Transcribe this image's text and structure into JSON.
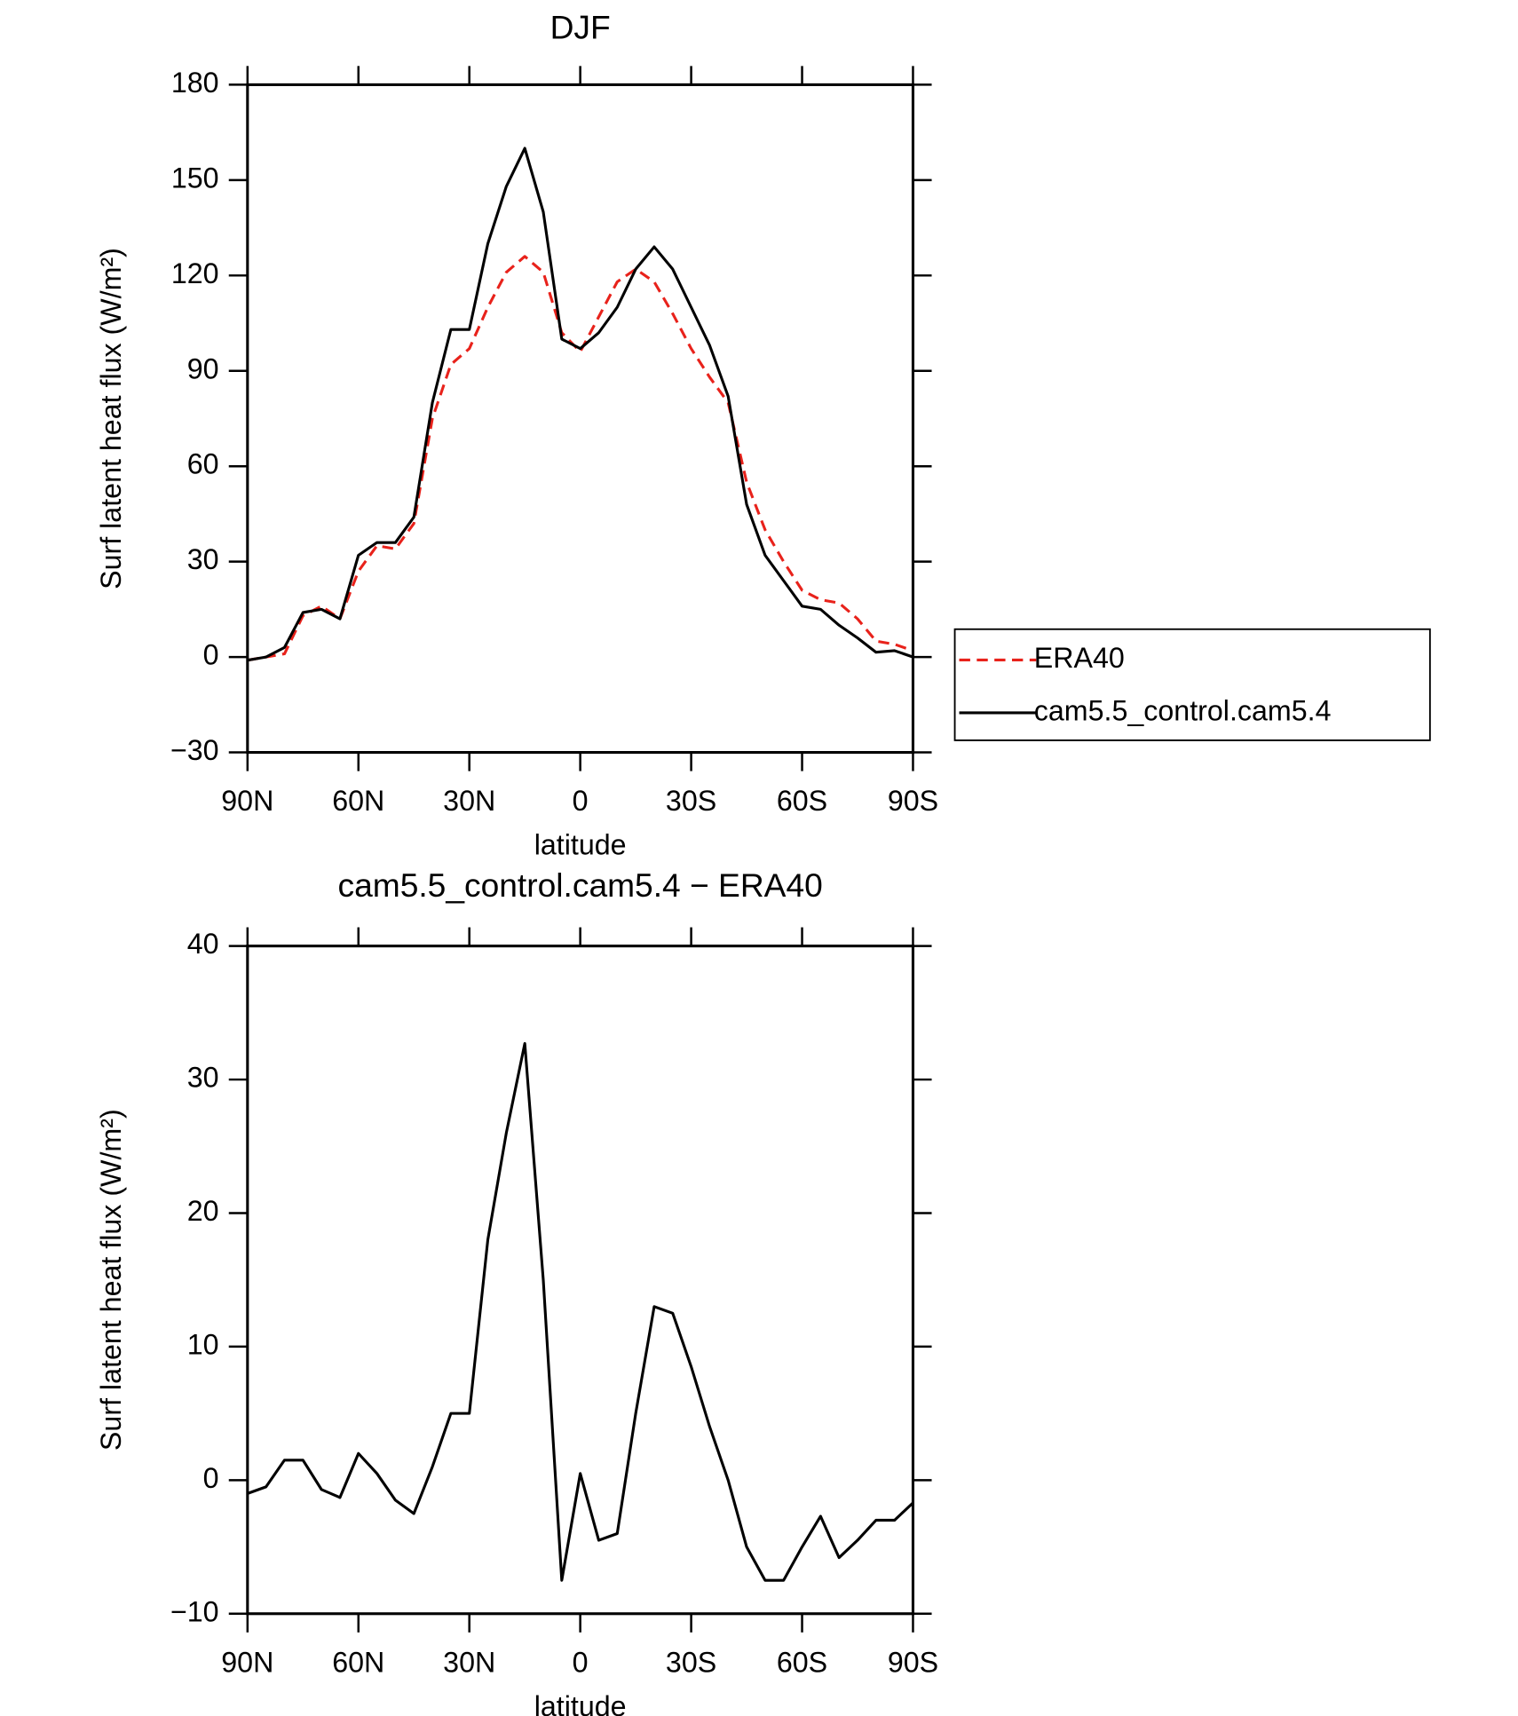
{
  "chart_data": [
    {
      "type": "line",
      "title": "DJF",
      "xlabel": "latitude",
      "ylabel": "Surf latent heat flux (W/m²)",
      "x": [
        90,
        85,
        80,
        75,
        70,
        65,
        60,
        55,
        50,
        45,
        40,
        35,
        30,
        25,
        20,
        15,
        10,
        5,
        0,
        -5,
        -10,
        -15,
        -20,
        -25,
        -30,
        -35,
        -40,
        -45,
        -50,
        -55,
        -60,
        -65,
        -70,
        -75,
        -80,
        -85,
        -90
      ],
      "series": [
        {
          "name": "ERA40",
          "color": "#e8221b",
          "dash": true,
          "values": [
            -1,
            0,
            1,
            13,
            16,
            12,
            27,
            35,
            34,
            42,
            75,
            92,
            97,
            110,
            121,
            126,
            121,
            102,
            96,
            107,
            118,
            122,
            118,
            108,
            97,
            88,
            80,
            55,
            40,
            30,
            21,
            18,
            17,
            12,
            5,
            4,
            2
          ]
        },
        {
          "name": "cam5.5_control.cam5.4",
          "color": "#000000",
          "dash": false,
          "values": [
            -1,
            0,
            3,
            14,
            15,
            12,
            32,
            36,
            36,
            44,
            80,
            103,
            103,
            130,
            148,
            160,
            140,
            100,
            97,
            102,
            110,
            122,
            129,
            122,
            110,
            98,
            82,
            48,
            32,
            24,
            16,
            15,
            10,
            6,
            1.5,
            2,
            0
          ]
        }
      ],
      "xlim": [
        90,
        -90
      ],
      "xticks": [
        {
          "value": 90,
          "label": "90N"
        },
        {
          "value": 60,
          "label": "60N"
        },
        {
          "value": 30,
          "label": "30N"
        },
        0,
        {
          "value": -30,
          "label": "30S"
        },
        {
          "value": -60,
          "label": "60S"
        },
        {
          "value": -90,
          "label": "90S"
        }
      ],
      "ylim": [
        -30,
        180
      ],
      "yticks": [
        {
          "value": -30,
          "label": "−30"
        },
        0,
        30,
        60,
        90,
        120,
        150,
        180
      ],
      "legend": "right"
    },
    {
      "type": "line",
      "title": "cam5.5_control.cam5.4 − ERA40",
      "xlabel": "latitude",
      "ylabel": "Surf latent heat flux (W/m²)",
      "x": [
        90,
        85,
        80,
        75,
        70,
        65,
        60,
        55,
        50,
        45,
        40,
        35,
        30,
        25,
        20,
        15,
        10,
        5,
        0,
        -5,
        -10,
        -15,
        -20,
        -25,
        -30,
        -35,
        -40,
        -45,
        -50,
        -55,
        -60,
        -65,
        -70,
        -75,
        -80,
        -85,
        -90
      ],
      "color": "#000000",
      "values": [
        -1,
        -0.5,
        1.5,
        1.5,
        -0.7,
        -1.3,
        2,
        0.5,
        -1.5,
        -2.5,
        1,
        5,
        5,
        18,
        26,
        32.7,
        15,
        -7.5,
        0.5,
        -4.5,
        -4,
        5,
        13,
        12.5,
        8.5,
        4,
        0,
        -5,
        -7.5,
        -7.5,
        -5,
        -2.7,
        -5.8,
        -4.5,
        -3,
        -3,
        -1.7
      ],
      "xlim": [
        90,
        -90
      ],
      "xticks": [
        {
          "value": 90,
          "label": "90N"
        },
        {
          "value": 60,
          "label": "60N"
        },
        {
          "value": 30,
          "label": "30N"
        },
        0,
        {
          "value": -30,
          "label": "30S"
        },
        {
          "value": -60,
          "label": "60S"
        },
        {
          "value": -90,
          "label": "90S"
        }
      ],
      "ylim": [
        -10,
        40
      ],
      "yticks": [
        {
          "value": -10,
          "label": "−10"
        },
        0,
        10,
        20,
        30,
        40
      ]
    }
  ]
}
